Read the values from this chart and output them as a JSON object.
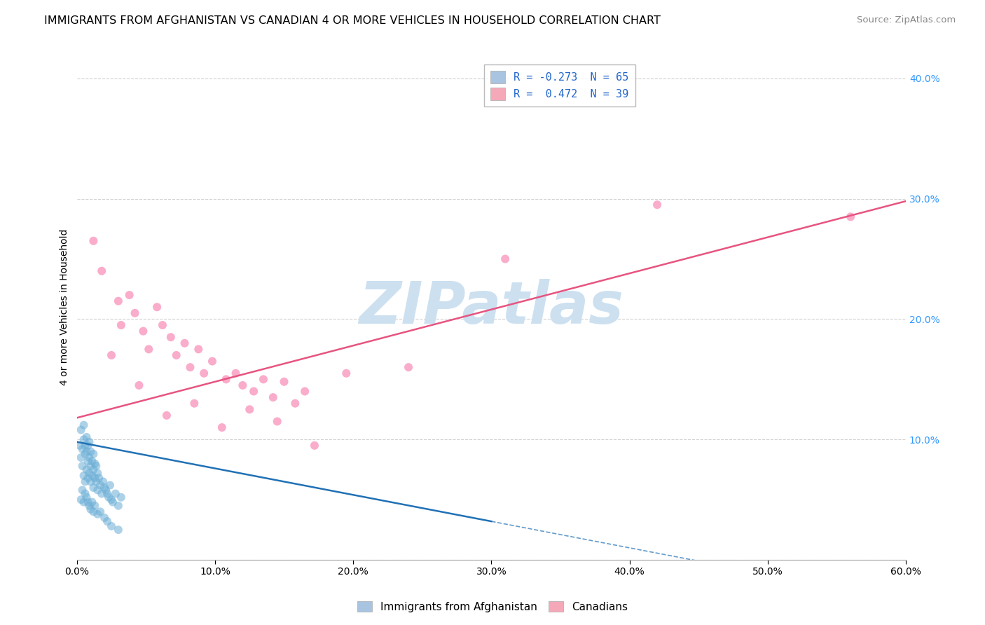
{
  "title": "IMMIGRANTS FROM AFGHANISTAN VS CANADIAN 4 OR MORE VEHICLES IN HOUSEHOLD CORRELATION CHART",
  "source": "Source: ZipAtlas.com",
  "ylabel": "4 or more Vehicles in Household",
  "watermark": "ZIPatlas",
  "legend_label_blue": "R = -0.273  N = 65",
  "legend_label_pink": "R =  0.472  N = 39",
  "legend_bottom_blue": "Immigrants from Afghanistan",
  "legend_bottom_pink": "Canadians",
  "xlim": [
    0.0,
    0.6
  ],
  "ylim": [
    0.0,
    0.42
  ],
  "xticks": [
    0.0,
    0.1,
    0.2,
    0.3,
    0.4,
    0.5,
    0.6
  ],
  "yticks": [
    0.0,
    0.1,
    0.2,
    0.3,
    0.4
  ],
  "xtick_labels": [
    "0.0%",
    "10.0%",
    "20.0%",
    "30.0%",
    "40.0%",
    "50.0%",
    "60.0%"
  ],
  "ytick_labels_right": [
    "",
    "10.0%",
    "20.0%",
    "30.0%",
    "40.0%"
  ],
  "grid_color": "#cccccc",
  "background_color": "#ffffff",
  "blue_scatter": [
    [
      0.002,
      0.095
    ],
    [
      0.003,
      0.085
    ],
    [
      0.003,
      0.108
    ],
    [
      0.004,
      0.078
    ],
    [
      0.004,
      0.092
    ],
    [
      0.005,
      0.07
    ],
    [
      0.005,
      0.1
    ],
    [
      0.005,
      0.112
    ],
    [
      0.006,
      0.065
    ],
    [
      0.006,
      0.088
    ],
    [
      0.006,
      0.095
    ],
    [
      0.007,
      0.075
    ],
    [
      0.007,
      0.09
    ],
    [
      0.007,
      0.102
    ],
    [
      0.008,
      0.068
    ],
    [
      0.008,
      0.082
    ],
    [
      0.008,
      0.095
    ],
    [
      0.009,
      0.072
    ],
    [
      0.009,
      0.085
    ],
    [
      0.009,
      0.098
    ],
    [
      0.01,
      0.065
    ],
    [
      0.01,
      0.078
    ],
    [
      0.01,
      0.09
    ],
    [
      0.011,
      0.07
    ],
    [
      0.011,
      0.082
    ],
    [
      0.012,
      0.06
    ],
    [
      0.012,
      0.075
    ],
    [
      0.012,
      0.088
    ],
    [
      0.013,
      0.068
    ],
    [
      0.013,
      0.08
    ],
    [
      0.014,
      0.065
    ],
    [
      0.014,
      0.078
    ],
    [
      0.015,
      0.058
    ],
    [
      0.015,
      0.072
    ],
    [
      0.016,
      0.068
    ],
    [
      0.017,
      0.062
    ],
    [
      0.018,
      0.055
    ],
    [
      0.019,
      0.065
    ],
    [
      0.02,
      0.06
    ],
    [
      0.021,
      0.058
    ],
    [
      0.022,
      0.055
    ],
    [
      0.023,
      0.052
    ],
    [
      0.024,
      0.062
    ],
    [
      0.025,
      0.05
    ],
    [
      0.026,
      0.048
    ],
    [
      0.028,
      0.055
    ],
    [
      0.03,
      0.045
    ],
    [
      0.032,
      0.052
    ],
    [
      0.003,
      0.05
    ],
    [
      0.004,
      0.058
    ],
    [
      0.005,
      0.048
    ],
    [
      0.006,
      0.055
    ],
    [
      0.007,
      0.052
    ],
    [
      0.008,
      0.048
    ],
    [
      0.009,
      0.045
    ],
    [
      0.01,
      0.042
    ],
    [
      0.011,
      0.048
    ],
    [
      0.012,
      0.04
    ],
    [
      0.013,
      0.045
    ],
    [
      0.015,
      0.038
    ],
    [
      0.017,
      0.04
    ],
    [
      0.02,
      0.035
    ],
    [
      0.022,
      0.032
    ],
    [
      0.025,
      0.028
    ],
    [
      0.03,
      0.025
    ]
  ],
  "pink_scatter": [
    [
      0.012,
      0.265
    ],
    [
      0.018,
      0.24
    ],
    [
      0.03,
      0.215
    ],
    [
      0.032,
      0.195
    ],
    [
      0.038,
      0.22
    ],
    [
      0.042,
      0.205
    ],
    [
      0.048,
      0.19
    ],
    [
      0.052,
      0.175
    ],
    [
      0.058,
      0.21
    ],
    [
      0.062,
      0.195
    ],
    [
      0.068,
      0.185
    ],
    [
      0.072,
      0.17
    ],
    [
      0.078,
      0.18
    ],
    [
      0.082,
      0.16
    ],
    [
      0.088,
      0.175
    ],
    [
      0.092,
      0.155
    ],
    [
      0.098,
      0.165
    ],
    [
      0.108,
      0.15
    ],
    [
      0.115,
      0.155
    ],
    [
      0.12,
      0.145
    ],
    [
      0.128,
      0.14
    ],
    [
      0.135,
      0.15
    ],
    [
      0.142,
      0.135
    ],
    [
      0.15,
      0.148
    ],
    [
      0.158,
      0.13
    ],
    [
      0.165,
      0.14
    ],
    [
      0.172,
      0.095
    ],
    [
      0.025,
      0.17
    ],
    [
      0.045,
      0.145
    ],
    [
      0.065,
      0.12
    ],
    [
      0.085,
      0.13
    ],
    [
      0.105,
      0.11
    ],
    [
      0.125,
      0.125
    ],
    [
      0.145,
      0.115
    ],
    [
      0.195,
      0.155
    ],
    [
      0.24,
      0.16
    ],
    [
      0.31,
      0.25
    ],
    [
      0.42,
      0.295
    ],
    [
      0.56,
      0.285
    ]
  ],
  "blue_line_x0": 0.0,
  "blue_line_x1": 0.3,
  "blue_line_dashed_x0": 0.3,
  "blue_line_dashed_x1": 0.52,
  "blue_intercept": 0.098,
  "blue_slope": -0.22,
  "pink_intercept": 0.118,
  "pink_slope": 0.3,
  "dot_size": 75,
  "dot_alpha": 0.55,
  "blue_color": "#6baed6",
  "blue_line_color": "#2171b5",
  "pink_color": "#f768a1",
  "pink_line_color": "#e75480",
  "legend_blue_color": "#a8c4e0",
  "legend_pink_color": "#f4a8b8",
  "watermark_color": "#cce0f0",
  "watermark_fontsize": 60,
  "title_fontsize": 11.5,
  "axis_fontsize": 10,
  "legend_fontsize": 11,
  "source_fontsize": 9.5,
  "right_tick_color": "#3399ff"
}
